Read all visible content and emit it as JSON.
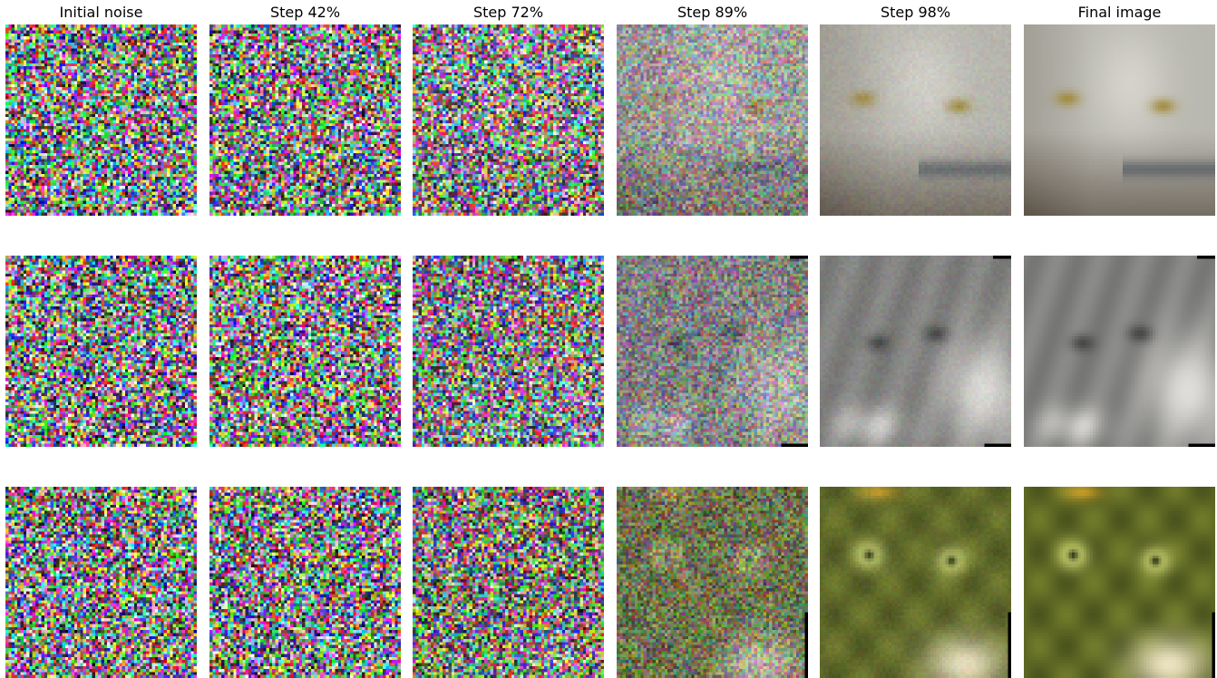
{
  "figure": {
    "columns": [
      {
        "title": "Initial noise",
        "noise_level": 1.0
      },
      {
        "title": "Step 42%",
        "noise_level": 0.97
      },
      {
        "title": "Step 72%",
        "noise_level": 0.85
      },
      {
        "title": "Step 89%",
        "noise_level": 0.45
      },
      {
        "title": "Step 98%",
        "noise_level": 0.06
      },
      {
        "title": "Final image",
        "noise_level": 0.0
      }
    ],
    "rows": [
      {
        "subject": "cat-face-white-tan",
        "palette": {
          "base": "#b9b8b0",
          "dark": "#4a3f33",
          "accent": "#a08a3a",
          "light": "#e6e4dc"
        }
      },
      {
        "subject": "cat-face-grey-tabby",
        "palette": {
          "base": "#8a8a88",
          "dark": "#3a3b3a",
          "accent": "#6b6a62",
          "light": "#e8e6e2"
        }
      },
      {
        "subject": "cat-face-green-yellow",
        "palette": {
          "base": "#6f7a2a",
          "dark": "#2e3512",
          "accent": "#d8e07a",
          "light": "#f2e8c8"
        }
      }
    ]
  }
}
